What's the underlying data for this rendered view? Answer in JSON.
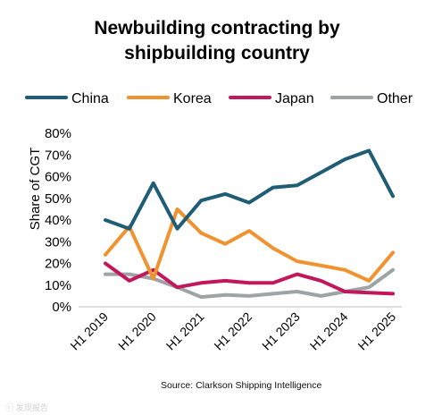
{
  "chart_data": {
    "type": "line",
    "title_line1": "Newbuilding contracting by",
    "title_line2": "shipbuilding country",
    "ylabel": "Share of CGT",
    "xlabel": "",
    "ylim": [
      0,
      80
    ],
    "yticks": [
      "0%",
      "10%",
      "20%",
      "30%",
      "40%",
      "50%",
      "60%",
      "70%",
      "80%"
    ],
    "xticks": [
      "H1 2019",
      "H1 2020",
      "H1 2021",
      "H1 2022",
      "H1 2023",
      "H1 2024",
      "H1 2025"
    ],
    "x": [
      "H1 2019",
      "H2 2019",
      "H1 2020",
      "H2 2020",
      "H1 2021",
      "H2 2021",
      "H1 2022",
      "H2 2022",
      "H1 2023",
      "H2 2023",
      "H1 2024",
      "H2 2024",
      "H1 2025"
    ],
    "grid": false,
    "legend": "top",
    "series": [
      {
        "name": "China",
        "color": "#1f5d77",
        "values": [
          40,
          36,
          57,
          36,
          49,
          52,
          48,
          55,
          56,
          62,
          68,
          72,
          51
        ]
      },
      {
        "name": "Korea",
        "color": "#f0922f",
        "values": [
          24,
          37,
          13,
          45,
          34,
          29,
          35,
          27,
          21,
          19,
          17,
          12,
          25
        ]
      },
      {
        "name": "Japan",
        "color": "#c2185b",
        "values": [
          20,
          12,
          17,
          9,
          11,
          12,
          11,
          11,
          15,
          12,
          7,
          6.5,
          6
        ]
      },
      {
        "name": "Other",
        "color": "#9ea3a5",
        "values": [
          15,
          15,
          13,
          9,
          4.5,
          5.5,
          5,
          6,
          7,
          5,
          7,
          9,
          17
        ]
      }
    ],
    "source": "Source: Clarkson Shipping Intelligence"
  },
  "watermark": "ⓒ 发现报告"
}
